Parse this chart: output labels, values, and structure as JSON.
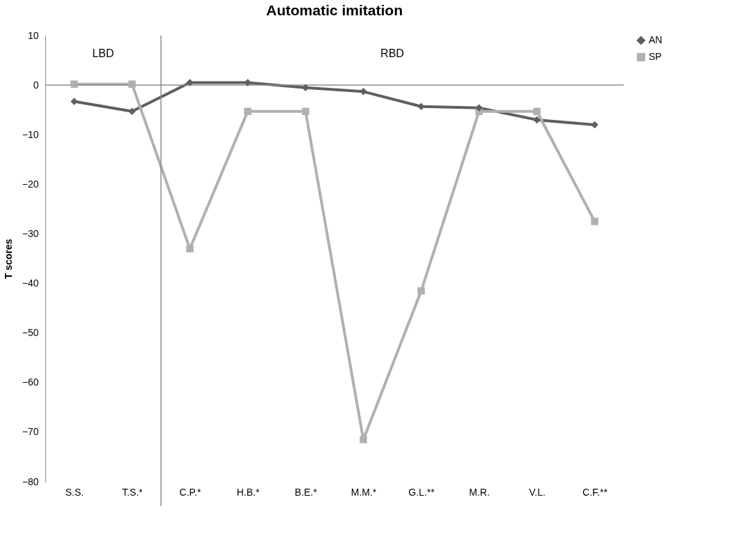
{
  "chart_data": {
    "type": "line",
    "title": "Automatic imitation",
    "ylabel": "T scores",
    "categories": [
      "S.S.",
      "T.S.*",
      "C.P.*",
      "H.B.*",
      "B.E.*",
      "M.M.*",
      "G.L.**",
      "M.R.",
      "V.L.",
      "C.F.**"
    ],
    "series": [
      {
        "name": "AN",
        "color": "#5f5f5f",
        "marker": "diamond",
        "values": [
          -3.3,
          -5.3,
          0.5,
          0.5,
          -0.5,
          -1.3,
          -4.3,
          -4.6,
          -7,
          -8
        ]
      },
      {
        "name": "SP",
        "color": "#b0b0b0",
        "marker": "square",
        "values": [
          0.2,
          0.2,
          -33,
          -5.3,
          -5.3,
          -71.5,
          -41.5,
          -5.3,
          -5.3,
          -27.5
        ]
      }
    ],
    "ylim": [
      -80,
      10
    ],
    "yticks": [
      -80,
      -70,
      -60,
      -50,
      -40,
      -30,
      -20,
      -10,
      0,
      10
    ],
    "ref_lines": [
      {
        "axis": "y",
        "value": 0,
        "color": "#8c8c8c"
      }
    ],
    "annotations": [
      "LBD",
      "RBD"
    ],
    "legend": "right",
    "grid": false
  }
}
